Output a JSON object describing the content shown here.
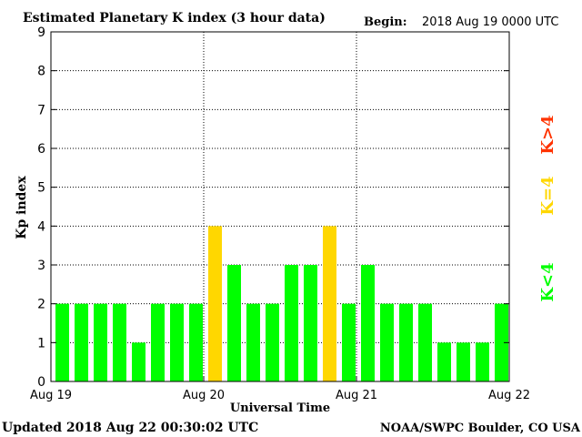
{
  "chart_data": {
    "type": "bar",
    "title": "Estimated Planetary K index (3 hour data)",
    "begin_label": "Begin:",
    "begin_value": "2018 Aug 19 0000 UTC",
    "ylabel": "Kp index",
    "xlabel": "Universal Time",
    "ylim": [
      0,
      9
    ],
    "yticks": [
      "0",
      "1",
      "2",
      "3",
      "4",
      "5",
      "6",
      "7",
      "8",
      "9"
    ],
    "xtick_labels": [
      "Aug 19",
      "Aug 20",
      "Aug 21",
      "Aug 22"
    ],
    "grid": true,
    "values": [
      2,
      2,
      2,
      2,
      1,
      2,
      2,
      2,
      4,
      3,
      2,
      2,
      3,
      3,
      4,
      2,
      3,
      2,
      2,
      2,
      1,
      1,
      1,
      2
    ],
    "legend": [
      "K<4",
      "K=4",
      "K>4"
    ],
    "colors": {
      "low": "#00ff00",
      "mid": "#ffd700",
      "high": "#ff3300"
    }
  },
  "footer": {
    "updated": "Updated 2018 Aug 22 00:30:02 UTC",
    "source": "NOAA/SWPC Boulder, CO USA"
  }
}
